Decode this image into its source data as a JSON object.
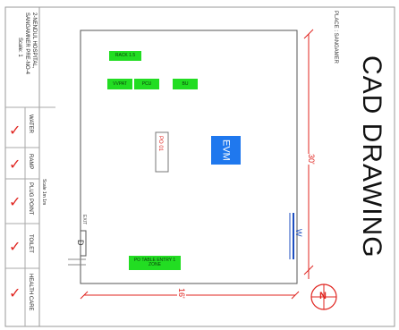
{
  "title": "CAD DRAWING",
  "place_label": "PLACE : SANGAMER",
  "header_lines": [
    "2-NENDUL HOSPITAL,",
    "SANGAMNER PRE-NO-4",
    "Scale: 1"
  ],
  "facilities": [
    "WATER",
    "RAMP",
    "PLUG POINT",
    "TOILET",
    "HEALTH CARE"
  ],
  "facility_status": "checked",
  "scale_note": "Scale 1m 1m",
  "equipment": {
    "rack": "RACK 1.5",
    "vvpat": "VVPAT",
    "pcu": "PCU",
    "bu": "BU",
    "evm": "EVM",
    "po_table": "PO 01",
    "door_label": "D",
    "window_label": "W",
    "bottom_table": "PO TABLE ENTRY 1 ZONE",
    "side_marker": "EXIT"
  },
  "dimensions": {
    "vertical": "30'",
    "horizontal": "16'"
  },
  "north_label": "N",
  "colors": {
    "green_equipment": "#22dd22",
    "evm_blue": "#1f78ee",
    "dimension_red": "#e0241f",
    "window_blue": "#1f4fc0"
  }
}
